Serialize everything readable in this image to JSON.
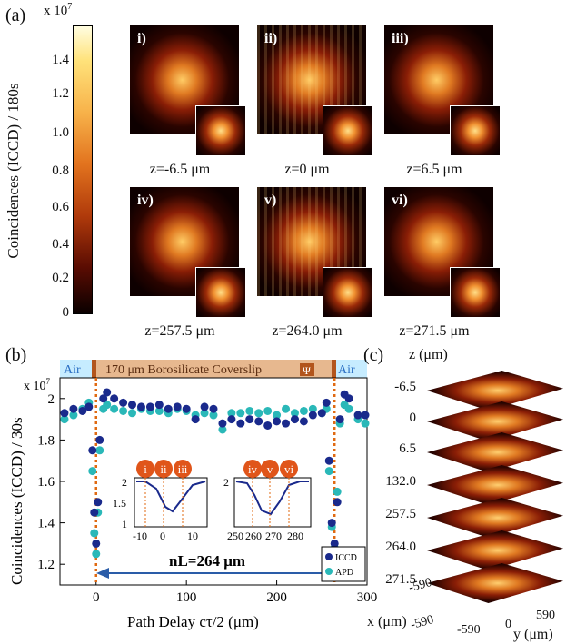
{
  "panel_a": {
    "label": "(a)",
    "colorbar": {
      "exponent": "x 10",
      "exponent_power": "7",
      "ylabel": "Coincidences (ICCD) / 180s",
      "ticks": [
        "1.4",
        "1.2",
        "1.0",
        "0.8",
        "0.6",
        "0.4",
        "0.2",
        "0"
      ]
    },
    "images": [
      {
        "tag": "i)",
        "z": "z=-6.5 μm"
      },
      {
        "tag": "ii)",
        "z": "z=0 μm"
      },
      {
        "tag": "iii)",
        "z": "z=6.5 μm"
      },
      {
        "tag": "iv)",
        "z": "z=257.5 μm"
      },
      {
        "tag": "v)",
        "z": "z=264.0 μm"
      },
      {
        "tag": "vi)",
        "z": "z=271.5 μm"
      }
    ]
  },
  "panel_b": {
    "label": "(b)",
    "air_left": "Air",
    "air_right": "Air",
    "coverslip": "170 μm Borosilicate Coverslip",
    "exponent": "x 10",
    "exponent_power": "7",
    "ylabel": "Coincidences (ICCD) /  30s",
    "xlabel": "Path Delay cτ/2 (μm)",
    "annotation": "nL=264 μm",
    "legend": [
      "ICCD",
      "APD"
    ],
    "inset_markers": [
      "i",
      "ii",
      "iii",
      "iv",
      "v",
      "vi"
    ],
    "inset1_xticks": [
      "-10",
      "0",
      "10"
    ],
    "inset2_xticks": [
      "250",
      "260",
      "270",
      "280"
    ],
    "inset_yticks": [
      "2",
      "1.5",
      "1"
    ]
  },
  "panel_c": {
    "label": "(c)",
    "zlabel": "z (μm)",
    "z_values": [
      "-6.5",
      "0",
      "6.5",
      "132.0",
      "257.5",
      "264.0",
      "271.5"
    ],
    "x_label": "x (μm)",
    "y_label": "y (μm)",
    "x_ticks": [
      "-590",
      "-590"
    ],
    "y_ticks": [
      "-590",
      "0",
      "590"
    ]
  },
  "chart_data": {
    "type": "scatter",
    "xlabel": "Path Delay cτ/2 (μm)",
    "ylabel": "Coincidences (ICCD) / 30s",
    "xlim": [
      -40,
      300
    ],
    "ylim": [
      1.1,
      2.1
    ],
    "x_ticks": [
      0,
      100,
      200,
      300
    ],
    "y_ticks": [
      1.2,
      1.4,
      1.6,
      1.8,
      2.0
    ],
    "series": [
      {
        "name": "ICCD",
        "color": "#1a2a8c",
        "x": [
          -35,
          -25,
          -15,
          -8,
          -4,
          -2,
          0,
          2,
          4,
          8,
          12,
          20,
          30,
          40,
          50,
          60,
          70,
          80,
          90,
          100,
          110,
          120,
          130,
          140,
          150,
          160,
          170,
          180,
          190,
          200,
          210,
          220,
          230,
          240,
          250,
          255,
          258,
          261,
          264,
          267,
          270,
          275,
          280,
          290,
          298
        ],
        "y": [
          1.93,
          1.95,
          1.94,
          1.96,
          1.75,
          1.45,
          1.3,
          1.5,
          1.8,
          2.0,
          2.03,
          2.0,
          1.98,
          1.97,
          1.96,
          1.96,
          1.97,
          1.95,
          1.96,
          1.95,
          1.9,
          1.96,
          1.95,
          1.88,
          1.9,
          1.88,
          1.9,
          1.89,
          1.87,
          1.89,
          1.88,
          1.9,
          1.89,
          1.92,
          1.93,
          1.98,
          1.7,
          1.4,
          1.3,
          1.5,
          1.9,
          2.02,
          2.0,
          1.92,
          1.92
        ]
      },
      {
        "name": "APD",
        "color": "#2ab8b8",
        "x": [
          -35,
          -25,
          -15,
          -8,
          -4,
          -2,
          0,
          2,
          4,
          8,
          12,
          20,
          30,
          40,
          50,
          60,
          70,
          80,
          90,
          100,
          110,
          120,
          130,
          140,
          150,
          160,
          170,
          180,
          190,
          200,
          210,
          220,
          230,
          240,
          250,
          255,
          258,
          261,
          264,
          267,
          270,
          275,
          280,
          290,
          298
        ],
        "y": [
          1.9,
          1.92,
          1.95,
          1.98,
          1.65,
          1.35,
          1.25,
          1.45,
          1.75,
          1.95,
          1.97,
          1.95,
          1.94,
          1.93,
          1.95,
          1.94,
          1.94,
          1.93,
          1.95,
          1.94,
          1.92,
          1.93,
          1.92,
          1.85,
          1.93,
          1.93,
          1.94,
          1.93,
          1.94,
          1.92,
          1.95,
          1.93,
          1.94,
          1.95,
          1.93,
          1.95,
          1.65,
          1.38,
          1.28,
          1.55,
          1.88,
          1.97,
          1.95,
          1.9,
          1.88
        ]
      }
    ],
    "markers": [
      0,
      264
    ]
  }
}
